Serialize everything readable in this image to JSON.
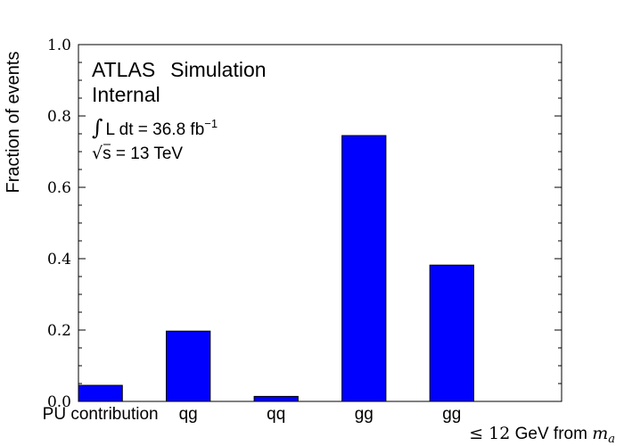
{
  "chart_data": {
    "type": "bar",
    "ylabel": "Fraction of events",
    "xlabel_parts": {
      "prefix": "≤ 12",
      "middle": " GeV from ",
      "suffix": "m",
      "sub": "a"
    },
    "ylim": [
      0.0,
      1.0
    ],
    "yticks": [
      "0.0",
      "0.2",
      "0.4",
      "0.6",
      "0.8",
      "1.0"
    ],
    "categories": [
      "PU contribution",
      "qg",
      "qq",
      "gg",
      "gg"
    ],
    "values": [
      0.045,
      0.197,
      0.014,
      0.745,
      0.382
    ],
    "bar_color": "#0000ff",
    "grid": false,
    "annotations": {
      "experiment": "ATLAS",
      "label": "Simulation",
      "status": "Internal",
      "lumi_integral": "∫",
      "lumi_text": "L dt = 36.8 fb",
      "lumi_sup": "−1",
      "energy_sqrt": "√",
      "energy_text": "s = 13 TeV"
    }
  }
}
